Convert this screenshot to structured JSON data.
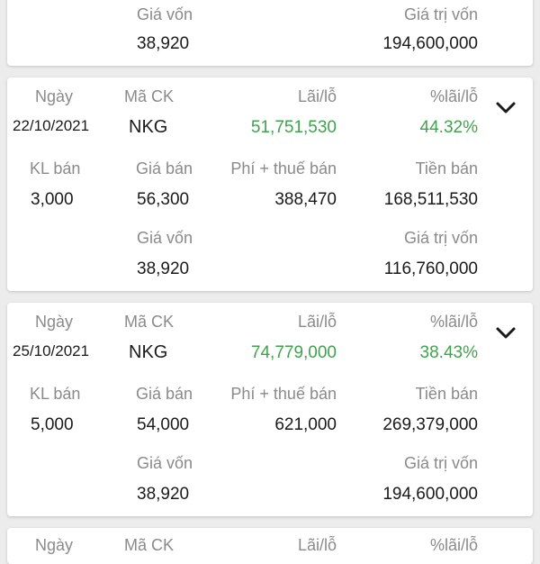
{
  "labels": {
    "date": "Ngày",
    "symbol": "Mã CK",
    "profit": "Lãi/lỗ",
    "profit_pct": "%lãi/lỗ",
    "qty": "KL bán",
    "sell_price": "Giá bán",
    "fee_tax": "Phí + thuế bán",
    "sell_amount": "Tiền bán",
    "cost_price": "Giá vốn",
    "cost_value": "Giá trị vốn"
  },
  "top_card": {
    "cost_price": "38,920",
    "cost_value": "194,600,000"
  },
  "records": [
    {
      "date": "22/10/2021",
      "symbol": "NKG",
      "profit": "51,751,530",
      "profit_pct": "44.32%",
      "qty": "3,000",
      "sell_price": "56,300",
      "fee_tax": "388,470",
      "sell_amount": "168,511,530",
      "cost_price": "38,920",
      "cost_value": "116,760,000"
    },
    {
      "date": "25/10/2021",
      "symbol": "NKG",
      "profit": "74,779,000",
      "profit_pct": "38.43%",
      "qty": "5,000",
      "sell_price": "54,000",
      "fee_tax": "621,000",
      "sell_amount": "269,379,000",
      "cost_price": "38,920",
      "cost_value": "194,600,000"
    }
  ],
  "colors": {
    "profit_green": "#3fa34d",
    "label_gray": "#8a8a8a",
    "background": "#ececec"
  },
  "icons": {
    "expand": "chevron-down-icon"
  }
}
